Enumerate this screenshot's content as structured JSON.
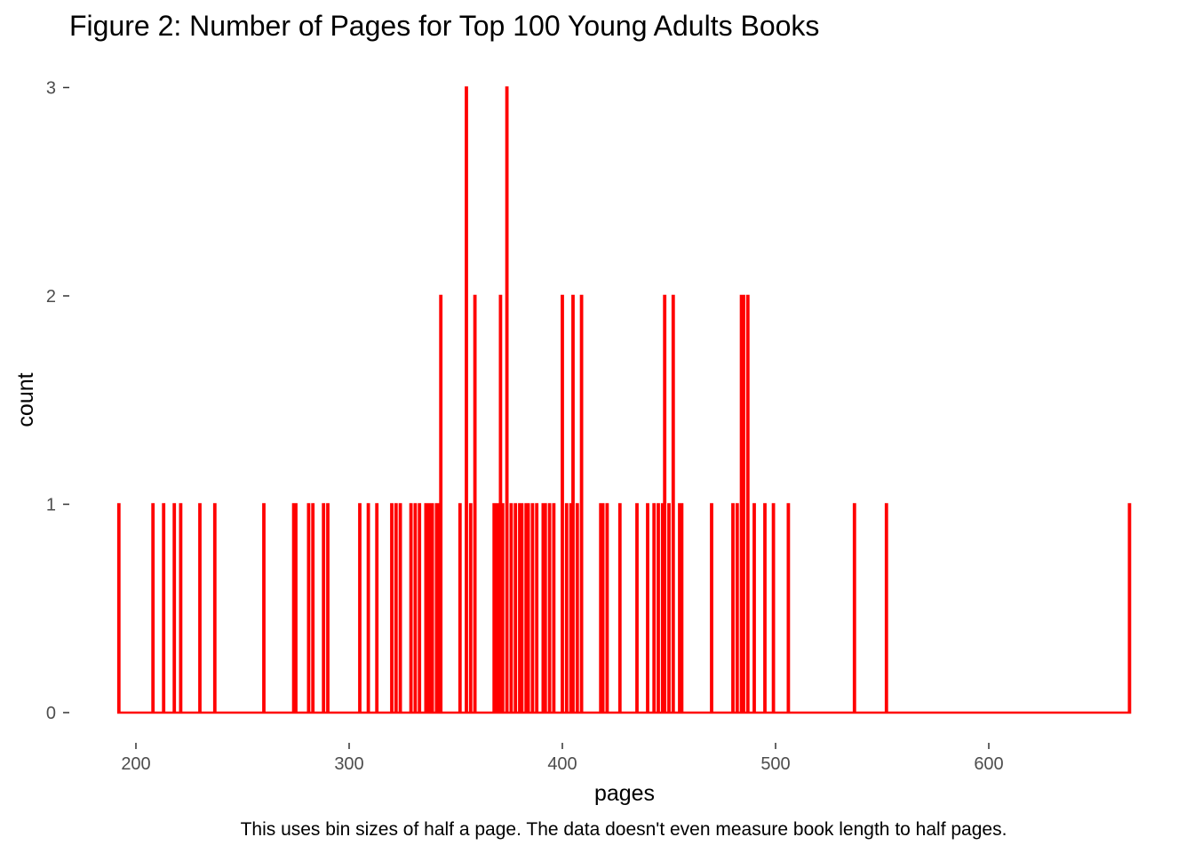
{
  "chart_data": {
    "type": "bar",
    "title": "Figure 2: Number of Pages for Top 100 Young Adults Books",
    "xlabel": "pages",
    "ylabel": "count",
    "caption": "This uses bin sizes of half a page. The data doesn't even measure book length to half pages.",
    "bin_width": 0.5,
    "xlim": [
      192,
      666
    ],
    "ylim": [
      0,
      3
    ],
    "x_ticks": [
      200,
      300,
      400,
      500,
      600
    ],
    "y_ticks": [
      0,
      1,
      2,
      3
    ],
    "grid": false,
    "legend": "none",
    "bar_color": "#ff0000",
    "points": [
      {
        "x": 192,
        "count": 1
      },
      {
        "x": 208,
        "count": 1
      },
      {
        "x": 213,
        "count": 1
      },
      {
        "x": 218,
        "count": 1
      },
      {
        "x": 221,
        "count": 1
      },
      {
        "x": 230,
        "count": 1
      },
      {
        "x": 237,
        "count": 1
      },
      {
        "x": 260,
        "count": 1
      },
      {
        "x": 274,
        "count": 1
      },
      {
        "x": 275,
        "count": 1
      },
      {
        "x": 281,
        "count": 1
      },
      {
        "x": 283,
        "count": 1
      },
      {
        "x": 288,
        "count": 1
      },
      {
        "x": 290,
        "count": 1
      },
      {
        "x": 305,
        "count": 1
      },
      {
        "x": 309,
        "count": 1
      },
      {
        "x": 313,
        "count": 1
      },
      {
        "x": 320,
        "count": 1
      },
      {
        "x": 322,
        "count": 1
      },
      {
        "x": 324,
        "count": 1
      },
      {
        "x": 329,
        "count": 1
      },
      {
        "x": 331,
        "count": 1
      },
      {
        "x": 333,
        "count": 1
      },
      {
        "x": 336,
        "count": 1
      },
      {
        "x": 337,
        "count": 1
      },
      {
        "x": 338,
        "count": 1
      },
      {
        "x": 339,
        "count": 1
      },
      {
        "x": 341,
        "count": 1
      },
      {
        "x": 342,
        "count": 1
      },
      {
        "x": 343,
        "count": 2
      },
      {
        "x": 352,
        "count": 1
      },
      {
        "x": 355,
        "count": 3
      },
      {
        "x": 357,
        "count": 1
      },
      {
        "x": 359,
        "count": 2
      },
      {
        "x": 368,
        "count": 1
      },
      {
        "x": 369,
        "count": 1
      },
      {
        "x": 370,
        "count": 1
      },
      {
        "x": 371,
        "count": 2
      },
      {
        "x": 372,
        "count": 1
      },
      {
        "x": 374,
        "count": 3
      },
      {
        "x": 376,
        "count": 1
      },
      {
        "x": 378,
        "count": 1
      },
      {
        "x": 380,
        "count": 1
      },
      {
        "x": 381,
        "count": 1
      },
      {
        "x": 383,
        "count": 1
      },
      {
        "x": 384,
        "count": 1
      },
      {
        "x": 386,
        "count": 1
      },
      {
        "x": 388,
        "count": 1
      },
      {
        "x": 391,
        "count": 1
      },
      {
        "x": 392,
        "count": 1
      },
      {
        "x": 394,
        "count": 1
      },
      {
        "x": 396,
        "count": 1
      },
      {
        "x": 400,
        "count": 2
      },
      {
        "x": 402,
        "count": 1
      },
      {
        "x": 404,
        "count": 1
      },
      {
        "x": 405,
        "count": 2
      },
      {
        "x": 407,
        "count": 1
      },
      {
        "x": 409,
        "count": 2
      },
      {
        "x": 418,
        "count": 1
      },
      {
        "x": 419,
        "count": 1
      },
      {
        "x": 421,
        "count": 1
      },
      {
        "x": 427,
        "count": 1
      },
      {
        "x": 435,
        "count": 1
      },
      {
        "x": 440,
        "count": 1
      },
      {
        "x": 443,
        "count": 1
      },
      {
        "x": 445,
        "count": 1
      },
      {
        "x": 447,
        "count": 1
      },
      {
        "x": 448,
        "count": 2
      },
      {
        "x": 450,
        "count": 1
      },
      {
        "x": 452,
        "count": 2
      },
      {
        "x": 455,
        "count": 1
      },
      {
        "x": 456,
        "count": 1
      },
      {
        "x": 470,
        "count": 1
      },
      {
        "x": 480,
        "count": 1
      },
      {
        "x": 482,
        "count": 1
      },
      {
        "x": 484,
        "count": 2
      },
      {
        "x": 485,
        "count": 2
      },
      {
        "x": 487,
        "count": 2
      },
      {
        "x": 490,
        "count": 1
      },
      {
        "x": 495,
        "count": 1
      },
      {
        "x": 499,
        "count": 1
      },
      {
        "x": 506,
        "count": 1
      },
      {
        "x": 537,
        "count": 1
      },
      {
        "x": 552,
        "count": 1
      },
      {
        "x": 666,
        "count": 1
      }
    ]
  }
}
